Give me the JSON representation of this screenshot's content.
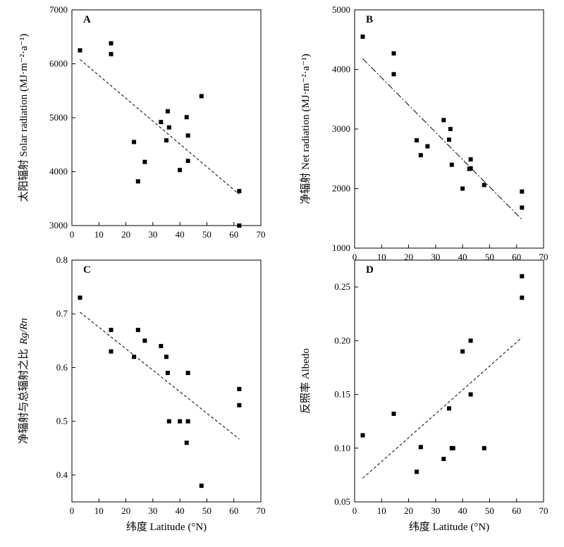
{
  "chart_data": [
    {
      "type": "scatter",
      "panel_label": "A",
      "ylabel": "太阳辐射 Solar radiation (MJ·m⁻²·a⁻¹)",
      "xlabel": "",
      "xlim": [
        0,
        70
      ],
      "ylim": [
        3000,
        7000
      ],
      "xticks": [
        "0",
        "10",
        "20",
        "30",
        "40",
        "50",
        "60",
        "70"
      ],
      "yticks": [
        "3000",
        "4000",
        "5000",
        "6000",
        "7000"
      ],
      "points": [
        {
          "x": 3,
          "y": 6250
        },
        {
          "x": 14.5,
          "y": 6380
        },
        {
          "x": 14.5,
          "y": 6180
        },
        {
          "x": 23,
          "y": 4550
        },
        {
          "x": 24.5,
          "y": 3820
        },
        {
          "x": 27,
          "y": 4180
        },
        {
          "x": 33,
          "y": 4920
        },
        {
          "x": 35,
          "y": 4580
        },
        {
          "x": 35.5,
          "y": 5120
        },
        {
          "x": 36,
          "y": 4820
        },
        {
          "x": 40,
          "y": 4030
        },
        {
          "x": 42.5,
          "y": 5010
        },
        {
          "x": 43,
          "y": 4670
        },
        {
          "x": 43,
          "y": 4200
        },
        {
          "x": 48,
          "y": 5400
        },
        {
          "x": 62,
          "y": 3640
        },
        {
          "x": 62,
          "y": 3000
        }
      ],
      "trendline": {
        "x": [
          3,
          62
        ],
        "y": [
          6080,
          3580
        ]
      }
    },
    {
      "type": "scatter",
      "panel_label": "B",
      "ylabel": "净辐射 Net radiation (MJ·m⁻²·a⁻¹)",
      "xlabel": "",
      "xlim": [
        0,
        70
      ],
      "ylim": [
        1000,
        5000
      ],
      "xticks": [
        "0",
        "10",
        "20",
        "30",
        "40",
        "50",
        "60",
        "70"
      ],
      "yticks": [
        "1000",
        "2000",
        "3000",
        "4000",
        "5000"
      ],
      "points": [
        {
          "x": 3,
          "y": 4550
        },
        {
          "x": 14.5,
          "y": 4270
        },
        {
          "x": 14.5,
          "y": 3920
        },
        {
          "x": 23,
          "y": 2810
        },
        {
          "x": 24.5,
          "y": 2560
        },
        {
          "x": 27,
          "y": 2710
        },
        {
          "x": 33,
          "y": 3150
        },
        {
          "x": 35,
          "y": 2820
        },
        {
          "x": 35.5,
          "y": 3000
        },
        {
          "x": 36,
          "y": 2400
        },
        {
          "x": 40,
          "y": 2000
        },
        {
          "x": 42.5,
          "y": 2330
        },
        {
          "x": 43,
          "y": 2490
        },
        {
          "x": 43,
          "y": 2340
        },
        {
          "x": 48,
          "y": 2060
        },
        {
          "x": 62,
          "y": 1950
        },
        {
          "x": 62,
          "y": 1680
        }
      ],
      "trendline": {
        "x": [
          3,
          62
        ],
        "y": [
          4180,
          1480
        ]
      }
    },
    {
      "type": "scatter",
      "panel_label": "C",
      "ylabel": "净辐射与总辐射之比",
      "ylabel_ratio": "Rg/Rn",
      "xlabel": "纬度 Latitude (°N)",
      "xlim": [
        0,
        70
      ],
      "ylim": [
        0.35,
        0.8
      ],
      "xticks": [
        "0",
        "10",
        "20",
        "30",
        "40",
        "50",
        "60",
        "70"
      ],
      "yticks": [
        "0.4",
        "0.5",
        "0.6",
        "0.7",
        "0.8"
      ],
      "points": [
        {
          "x": 3,
          "y": 0.73
        },
        {
          "x": 14.5,
          "y": 0.67
        },
        {
          "x": 14.5,
          "y": 0.63
        },
        {
          "x": 23,
          "y": 0.62
        },
        {
          "x": 24.5,
          "y": 0.67
        },
        {
          "x": 27,
          "y": 0.65
        },
        {
          "x": 33,
          "y": 0.64
        },
        {
          "x": 35,
          "y": 0.62
        },
        {
          "x": 35.5,
          "y": 0.59
        },
        {
          "x": 36,
          "y": 0.5
        },
        {
          "x": 40,
          "y": 0.5
        },
        {
          "x": 42.5,
          "y": 0.46
        },
        {
          "x": 43,
          "y": 0.59
        },
        {
          "x": 43,
          "y": 0.5
        },
        {
          "x": 48,
          "y": 0.38
        },
        {
          "x": 62,
          "y": 0.56
        },
        {
          "x": 62,
          "y": 0.53
        }
      ],
      "trendline": {
        "x": [
          3,
          62
        ],
        "y": [
          0.703,
          0.467
        ]
      }
    },
    {
      "type": "scatter",
      "panel_label": "D",
      "ylabel": "反照率 Albedo",
      "xlabel": "纬度 Latitude (°N)",
      "xlim": [
        0,
        70
      ],
      "ylim": [
        0.05,
        0.275
      ],
      "xticks": [
        "0",
        "10",
        "20",
        "30",
        "40",
        "50",
        "60",
        "70"
      ],
      "yticks": [
        "0.05",
        "0.10",
        "0.15",
        "0.20",
        "0.25"
      ],
      "points": [
        {
          "x": 3,
          "y": 0.112
        },
        {
          "x": 14.5,
          "y": 0.132
        },
        {
          "x": 23,
          "y": 0.078
        },
        {
          "x": 24.5,
          "y": 0.101
        },
        {
          "x": 33,
          "y": 0.09
        },
        {
          "x": 35,
          "y": 0.137
        },
        {
          "x": 36,
          "y": 0.1
        },
        {
          "x": 36.5,
          "y": 0.1
        },
        {
          "x": 40,
          "y": 0.19
        },
        {
          "x": 43,
          "y": 0.2
        },
        {
          "x": 43,
          "y": 0.15
        },
        {
          "x": 48,
          "y": 0.1
        },
        {
          "x": 62,
          "y": 0.26
        },
        {
          "x": 62,
          "y": 0.24
        }
      ],
      "trendline": {
        "x": [
          3,
          62
        ],
        "y": [
          0.072,
          0.203
        ]
      }
    }
  ]
}
